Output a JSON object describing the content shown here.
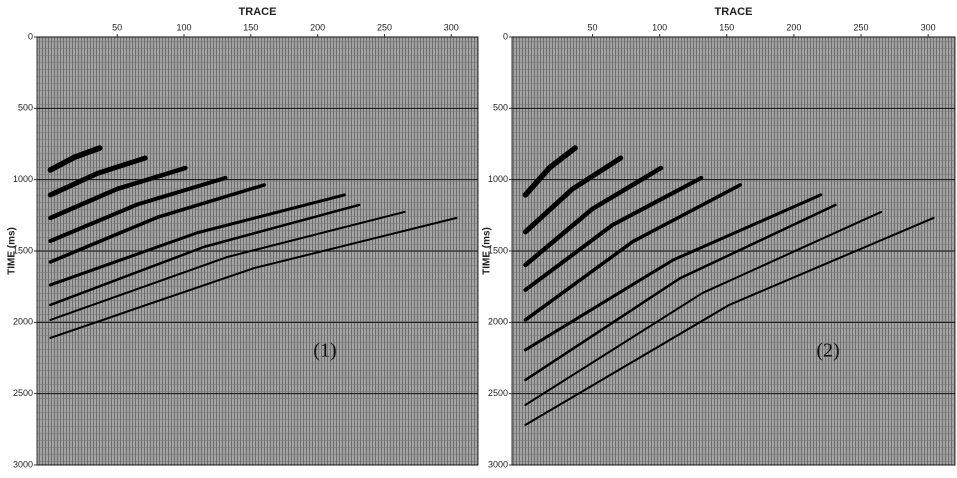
{
  "chart_data": [
    {
      "type": "line",
      "x_label": "TRACE",
      "y_label": "TIME (ms)",
      "annotation": "(1)",
      "xlim": [
        -10,
        320
      ],
      "ylim": [
        0,
        3000
      ],
      "y_reversed": true,
      "xticks": [
        50,
        100,
        150,
        200,
        250,
        300
      ],
      "yticks": [
        0,
        500,
        1000,
        1500,
        2000,
        2500,
        3000
      ],
      "grid": true,
      "series": [
        {
          "color": "#000000",
          "x": [
            0,
            18,
            37
          ],
          "values": [
            932,
            843,
            778
          ]
        },
        {
          "color": "#000000",
          "x": [
            0,
            35,
            71
          ],
          "values": [
            1107,
            957,
            848
          ]
        },
        {
          "color": "#000000",
          "x": [
            0,
            50,
            101
          ],
          "values": [
            1268,
            1065,
            918
          ]
        },
        {
          "color": "#000000",
          "x": [
            0,
            65,
            131
          ],
          "values": [
            1430,
            1174,
            988
          ]
        },
        {
          "color": "#000000",
          "x": [
            0,
            80,
            160
          ],
          "values": [
            1577,
            1264,
            1037
          ]
        },
        {
          "color": "#000000",
          "x": [
            0,
            110,
            220
          ],
          "values": [
            1738,
            1372,
            1107
          ]
        },
        {
          "color": "#000000",
          "x": [
            0,
            115,
            231
          ],
          "values": [
            1878,
            1471,
            1177
          ]
        },
        {
          "color": "#000000",
          "x": [
            0,
            132,
            265
          ],
          "values": [
            1983,
            1543,
            1226
          ]
        },
        {
          "color": "#000000",
          "x": [
            0,
            152,
            304
          ],
          "values": [
            2109,
            1621,
            1268
          ]
        }
      ]
    },
    {
      "type": "line",
      "x_label": "TRACE",
      "y_label": "TIME (ms)",
      "annotation": "(2)",
      "xlim": [
        -10,
        320
      ],
      "ylim": [
        0,
        3000
      ],
      "y_reversed": true,
      "xticks": [
        50,
        100,
        150,
        200,
        250,
        300
      ],
      "yticks": [
        0,
        500,
        1000,
        1500,
        2000,
        2500,
        3000
      ],
      "grid": true,
      "series": [
        {
          "color": "#000000",
          "x": [
            0,
            18,
            37
          ],
          "values": [
            1107,
            916,
            778
          ]
        },
        {
          "color": "#000000",
          "x": [
            0,
            35,
            71
          ],
          "values": [
            1366,
            1066,
            848
          ]
        },
        {
          "color": "#000000",
          "x": [
            0,
            50,
            101
          ],
          "values": [
            1598,
            1204,
            918
          ]
        },
        {
          "color": "#000000",
          "x": [
            0,
            65,
            131
          ],
          "values": [
            1773,
            1317,
            988
          ]
        },
        {
          "color": "#000000",
          "x": [
            0,
            80,
            160
          ],
          "values": [
            1983,
            1434,
            1037
          ]
        },
        {
          "color": "#000000",
          "x": [
            0,
            110,
            220
          ],
          "values": [
            2193,
            1563,
            1107
          ]
        },
        {
          "color": "#000000",
          "x": [
            0,
            115,
            231
          ],
          "values": [
            2404,
            1692,
            1177
          ]
        },
        {
          "color": "#000000",
          "x": [
            0,
            132,
            265
          ],
          "values": [
            2579,
            1794,
            1226
          ]
        },
        {
          "color": "#000000",
          "x": [
            0,
            152,
            304
          ],
          "values": [
            2719,
            1877,
            1268
          ]
        }
      ]
    }
  ]
}
